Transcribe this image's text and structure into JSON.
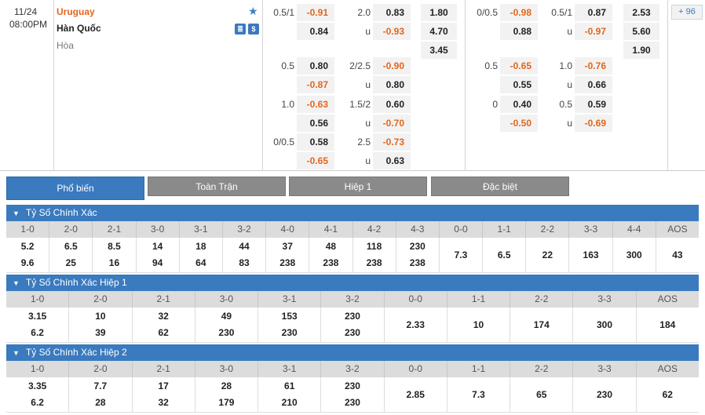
{
  "match": {
    "date": "11/24",
    "time": "08:00PM",
    "home": "Uruguay",
    "away": "Hàn Quốc",
    "draw": "Hòa",
    "count_badge": "+ 96"
  },
  "ft_handicap": [
    {
      "line": "0.5/1",
      "home": "-0.91",
      "away": "0.84"
    },
    {
      "line": "0.5",
      "home": "0.80",
      "away": "-0.87"
    },
    {
      "line": "1.0",
      "home": "-0.63",
      "away": "0.56"
    },
    {
      "line": "0/0.5",
      "home": "0.58",
      "away": "-0.65"
    }
  ],
  "ft_overunder": [
    {
      "line": "2.0",
      "u": "u",
      "over": "0.83",
      "under": "-0.93"
    },
    {
      "line": "2/2.5",
      "u": "u",
      "over": "-0.90",
      "under": "0.80"
    },
    {
      "line": "1.5/2",
      "u": "u",
      "over": "0.60",
      "under": "-0.70"
    },
    {
      "line": "2.5",
      "u": "u",
      "over": "-0.73",
      "under": "0.63"
    }
  ],
  "ft_1x2": {
    "home": "1.80",
    "away": "4.70",
    "draw": "3.45"
  },
  "h1_handicap": [
    {
      "line": "0/0.5",
      "home": "-0.98",
      "away": "0.88"
    },
    {
      "line": "0.5",
      "home": "-0.65",
      "away": "0.55"
    },
    {
      "line": "0",
      "home": "0.40",
      "away": "-0.50"
    }
  ],
  "h1_overunder": [
    {
      "line": "0.5/1",
      "u": "u",
      "over": "0.87",
      "under": "-0.97"
    },
    {
      "line": "1.0",
      "u": "u",
      "over": "-0.76",
      "under": "0.66"
    },
    {
      "line": "0.5",
      "u": "u",
      "over": "0.59",
      "under": "-0.69"
    }
  ],
  "h1_1x2": {
    "home": "2.53",
    "away": "5.60",
    "draw": "1.90"
  },
  "tabs": [
    "Phổ biến",
    "Toàn Trận",
    "Hiệp 1",
    "Đặc biệt"
  ],
  "sections": [
    {
      "title": "Tỷ Số Chính Xác",
      "cols": [
        {
          "label": "1-0",
          "v": [
            "5.2",
            "9.6"
          ]
        },
        {
          "label": "2-0",
          "v": [
            "6.5",
            "25"
          ]
        },
        {
          "label": "2-1",
          "v": [
            "8.5",
            "16"
          ]
        },
        {
          "label": "3-0",
          "v": [
            "14",
            "94"
          ]
        },
        {
          "label": "3-1",
          "v": [
            "18",
            "64"
          ]
        },
        {
          "label": "3-2",
          "v": [
            "44",
            "83"
          ]
        },
        {
          "label": "4-0",
          "v": [
            "37",
            "238"
          ]
        },
        {
          "label": "4-1",
          "v": [
            "48",
            "238"
          ]
        },
        {
          "label": "4-2",
          "v": [
            "118",
            "238"
          ]
        },
        {
          "label": "4-3",
          "v": [
            "230",
            "238"
          ]
        },
        {
          "label": "0-0",
          "v": [
            "7.3"
          ]
        },
        {
          "label": "1-1",
          "v": [
            "6.5"
          ]
        },
        {
          "label": "2-2",
          "v": [
            "22"
          ]
        },
        {
          "label": "3-3",
          "v": [
            "163"
          ]
        },
        {
          "label": "4-4",
          "v": [
            "300"
          ]
        },
        {
          "label": "AOS",
          "v": [
            "43"
          ]
        }
      ]
    },
    {
      "title": "Tỷ Số Chính Xác Hiệp 1",
      "cols": [
        {
          "label": "1-0",
          "v": [
            "3.15",
            "6.2"
          ]
        },
        {
          "label": "2-0",
          "v": [
            "10",
            "39"
          ]
        },
        {
          "label": "2-1",
          "v": [
            "32",
            "62"
          ]
        },
        {
          "label": "3-0",
          "v": [
            "49",
            "230"
          ]
        },
        {
          "label": "3-1",
          "v": [
            "153",
            "230"
          ]
        },
        {
          "label": "3-2",
          "v": [
            "230",
            "230"
          ]
        },
        {
          "label": "0-0",
          "v": [
            "2.33"
          ]
        },
        {
          "label": "1-1",
          "v": [
            "10"
          ]
        },
        {
          "label": "2-2",
          "v": [
            "174"
          ]
        },
        {
          "label": "3-3",
          "v": [
            "300"
          ]
        },
        {
          "label": "AOS",
          "v": [
            "184"
          ]
        }
      ]
    },
    {
      "title": "Tỷ Số Chính Xác Hiệp 2",
      "cols": [
        {
          "label": "1-0",
          "v": [
            "3.35",
            "6.2"
          ]
        },
        {
          "label": "2-0",
          "v": [
            "7.7",
            "28"
          ]
        },
        {
          "label": "2-1",
          "v": [
            "17",
            "32"
          ]
        },
        {
          "label": "3-0",
          "v": [
            "28",
            "179"
          ]
        },
        {
          "label": "3-1",
          "v": [
            "61",
            "210"
          ]
        },
        {
          "label": "3-2",
          "v": [
            "230",
            "230"
          ]
        },
        {
          "label": "0-0",
          "v": [
            "2.85"
          ]
        },
        {
          "label": "1-1",
          "v": [
            "7.3"
          ]
        },
        {
          "label": "2-2",
          "v": [
            "65"
          ]
        },
        {
          "label": "3-3",
          "v": [
            "230"
          ]
        },
        {
          "label": "AOS",
          "v": [
            "62"
          ]
        }
      ]
    }
  ]
}
